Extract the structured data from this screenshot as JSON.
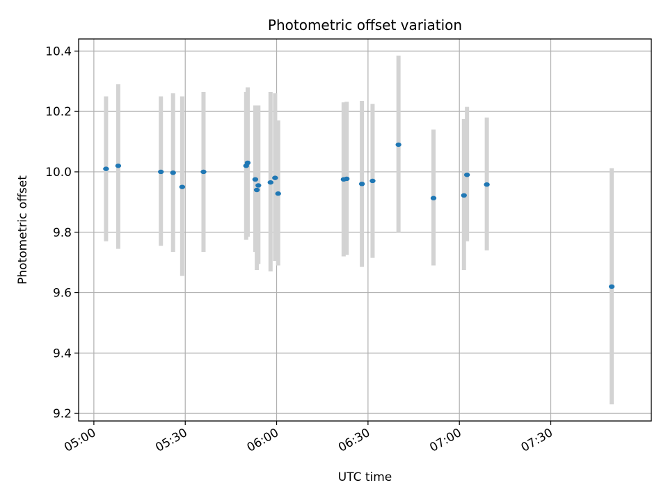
{
  "chart_data": {
    "type": "scatter",
    "title": "Photometric offset variation",
    "xlabel": "UTC time",
    "ylabel": "Photometric offset",
    "x_ticks": [
      "05:00",
      "05:30",
      "06:00",
      "06:30",
      "07:00",
      "07:30"
    ],
    "y_ticks": [
      "9.2",
      "9.4",
      "9.6",
      "9.8",
      "10.0",
      "10.2",
      "10.4"
    ],
    "xlim": [
      "04:55",
      "08:03"
    ],
    "ylim": [
      9.175,
      10.44
    ],
    "grid": true,
    "colors": {
      "marker": "#1f77b4",
      "errorbar": "#d3d3d3"
    },
    "points": [
      {
        "time": "05:04",
        "y": 10.01,
        "ylow": 9.77,
        "yhigh": 10.25
      },
      {
        "time": "05:08",
        "y": 10.02,
        "ylow": 9.745,
        "yhigh": 10.29
      },
      {
        "time": "05:22",
        "y": 10.0,
        "ylow": 9.755,
        "yhigh": 10.25
      },
      {
        "time": "05:26",
        "y": 9.997,
        "ylow": 9.735,
        "yhigh": 10.26
      },
      {
        "time": "05:29",
        "y": 9.95,
        "ylow": 9.655,
        "yhigh": 10.25
      },
      {
        "time": "05:36",
        "y": 10.0,
        "ylow": 9.735,
        "yhigh": 10.265
      },
      {
        "time": "05:50",
        "y": 10.02,
        "ylow": 9.775,
        "yhigh": 10.265
      },
      {
        "time": "05:50.5",
        "y": 10.03,
        "ylow": 9.785,
        "yhigh": 10.28
      },
      {
        "time": "05:53",
        "y": 9.975,
        "ylow": 9.735,
        "yhigh": 10.22
      },
      {
        "time": "05:53.5",
        "y": 9.94,
        "ylow": 9.675,
        "yhigh": 10.22
      },
      {
        "time": "05:54",
        "y": 9.955,
        "ylow": 9.695,
        "yhigh": 10.22
      },
      {
        "time": "05:58",
        "y": 9.965,
        "ylow": 9.67,
        "yhigh": 10.265
      },
      {
        "time": "05:59.5",
        "y": 9.98,
        "ylow": 9.705,
        "yhigh": 10.26
      },
      {
        "time": "06:00.5",
        "y": 9.928,
        "ylow": 9.69,
        "yhigh": 10.17
      },
      {
        "time": "06:22",
        "y": 9.975,
        "ylow": 9.72,
        "yhigh": 10.23
      },
      {
        "time": "06:23",
        "y": 9.977,
        "ylow": 9.725,
        "yhigh": 10.232
      },
      {
        "time": "06:28",
        "y": 9.96,
        "ylow": 9.685,
        "yhigh": 10.235
      },
      {
        "time": "06:31.5",
        "y": 9.97,
        "ylow": 9.715,
        "yhigh": 10.225
      },
      {
        "time": "06:40",
        "y": 10.09,
        "ylow": 9.8,
        "yhigh": 10.385
      },
      {
        "time": "06:51.5",
        "y": 9.913,
        "ylow": 9.69,
        "yhigh": 10.14
      },
      {
        "time": "07:01.5",
        "y": 9.922,
        "ylow": 9.675,
        "yhigh": 10.175
      },
      {
        "time": "07:02.5",
        "y": 9.99,
        "ylow": 9.77,
        "yhigh": 10.215
      },
      {
        "time": "07:09",
        "y": 9.958,
        "ylow": 9.74,
        "yhigh": 10.18
      },
      {
        "time": "07:50",
        "y": 9.62,
        "ylow": 9.23,
        "yhigh": 10.012
      }
    ]
  }
}
